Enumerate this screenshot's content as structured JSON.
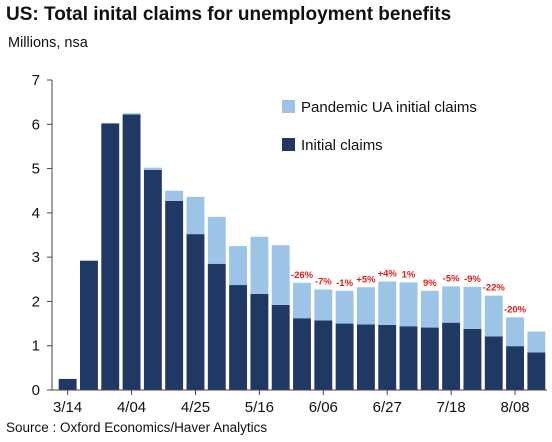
{
  "title": "US: Total inital claims for unemployment benefits",
  "subtitle": "Millions, nsa",
  "source": "Source : Oxford Economics/Haver Analytics",
  "colors": {
    "initial": "#1f3864",
    "pandemic": "#9dc3e6",
    "annotation": "#e41b17"
  },
  "chart_data": {
    "type": "bar",
    "stacked": true,
    "ylim": [
      0,
      7
    ],
    "yticks": [
      "0",
      "1",
      "2",
      "3",
      "4",
      "5",
      "6",
      "7"
    ],
    "xticks": [
      {
        "label": "3/14",
        "index": 0
      },
      {
        "label": "4/04",
        "index": 3
      },
      {
        "label": "4/25",
        "index": 6
      },
      {
        "label": "5/16",
        "index": 9
      },
      {
        "label": "6/06",
        "index": 12
      },
      {
        "label": "6/27",
        "index": 15
      },
      {
        "label": "7/18",
        "index": 18
      },
      {
        "label": "8/08",
        "index": 21
      }
    ],
    "legend": {
      "position": "top-right"
    },
    "series": [
      {
        "name": "Initial claims",
        "values": [
          0.25,
          2.92,
          6.02,
          6.22,
          4.97,
          4.27,
          3.52,
          2.85,
          2.37,
          2.17,
          1.92,
          1.62,
          1.57,
          1.5,
          1.48,
          1.47,
          1.44,
          1.41,
          1.52,
          1.38,
          1.21,
          0.99,
          0.85
        ]
      },
      {
        "name": "Pandemic UA initial claims",
        "values": [
          0,
          0,
          0,
          0.03,
          0.05,
          0.23,
          0.84,
          1.06,
          0.88,
          1.29,
          1.35,
          0.8,
          0.7,
          0.74,
          0.84,
          0.98,
          0.99,
          0.83,
          0.82,
          0.95,
          0.92,
          0.65,
          0.47
        ]
      }
    ],
    "annotations": [
      "",
      "",
      "",
      "",
      "",
      "",
      "",
      "",
      "",
      "",
      "",
      "-26%",
      "-7%",
      "-1%",
      "+5%",
      "+4%",
      "1%",
      "9%",
      "-5%",
      "-9%",
      "-22%",
      "-20%"
    ]
  }
}
